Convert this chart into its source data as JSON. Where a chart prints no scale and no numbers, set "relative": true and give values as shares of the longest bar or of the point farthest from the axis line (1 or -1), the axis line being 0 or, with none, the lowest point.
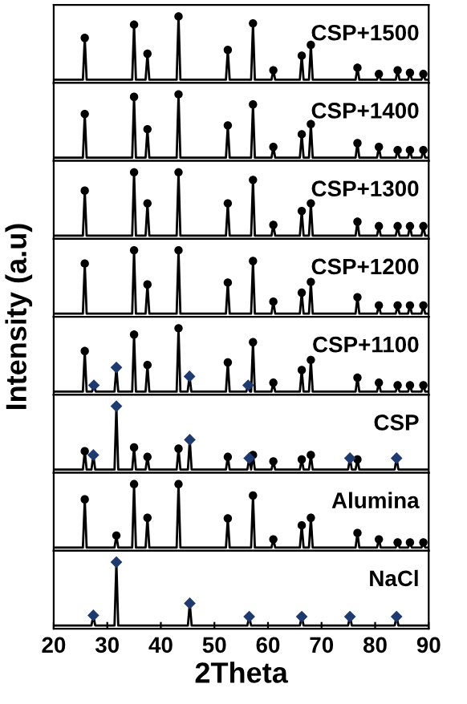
{
  "chart_data": [
    {
      "type": "line",
      "relative": true,
      "xlim": [
        20,
        90
      ],
      "tick_labels": false,
      "grid": false,
      "legend": false,
      "series": [
        {
          "name": "CSP+1500",
          "color": "#000000",
          "x": [
            20,
            25.45,
            25.8,
            26.15,
            34.65,
            35.0,
            35.35,
            37.15,
            37.5,
            37.85,
            42.95,
            43.3,
            43.65,
            52.15,
            52.5,
            52.85,
            56.85,
            57.2,
            57.55,
            60.65,
            61.0,
            61.35,
            65.95,
            66.3,
            66.65,
            67.65,
            68.0,
            68.35,
            76.35,
            76.7,
            77.05,
            80.35,
            80.7,
            81.05,
            83.85,
            84.2,
            84.55,
            86.15,
            86.5,
            86.85,
            88.65,
            89.0,
            89.35,
            89.8
          ],
          "values": [
            0,
            0,
            0.66,
            0,
            0,
            0.87,
            0,
            0,
            0.41,
            0,
            0,
            1,
            0,
            0,
            0.47,
            0,
            0,
            0.89,
            0,
            0,
            0.15,
            0,
            0,
            0.38,
            0,
            0,
            0.55,
            0,
            0,
            0.19,
            0,
            0,
            0.09,
            0,
            0,
            0.15,
            0,
            0,
            0.11,
            0,
            0,
            0.09,
            0,
            0
          ]
        },
        {
          "type": "scatter",
          "marker": "circle",
          "color": "#000000",
          "x": [
            25.8,
            35.0,
            37.5,
            43.3,
            52.5,
            57.2,
            61.0,
            66.3,
            68.0,
            76.7,
            80.7,
            84.2,
            86.5,
            89.0
          ],
          "values": [
            0.66,
            0.87,
            0.41,
            1,
            0.47,
            0.89,
            0.15,
            0.38,
            0.55,
            0.19,
            0.09,
            0.15,
            0.11,
            0.09
          ]
        }
      ]
    },
    {
      "type": "line",
      "relative": true,
      "xlim": [
        20,
        90
      ],
      "tick_labels": false,
      "grid": false,
      "legend": false,
      "series": [
        {
          "name": "CSP+1400",
          "color": "#000000",
          "x": [
            20,
            25.45,
            25.8,
            26.15,
            34.65,
            35.0,
            35.35,
            37.15,
            37.5,
            37.85,
            42.95,
            43.3,
            43.65,
            52.15,
            52.5,
            52.85,
            56.85,
            57.2,
            57.55,
            60.65,
            61.0,
            61.35,
            65.95,
            66.3,
            66.65,
            67.65,
            68.0,
            68.35,
            76.35,
            76.7,
            77.05,
            80.35,
            80.7,
            81.05,
            83.85,
            84.2,
            84.55,
            86.15,
            86.5,
            86.85,
            88.65,
            89.0,
            89.35,
            89.8
          ],
          "values": [
            0,
            0,
            0.69,
            0,
            0,
            0.96,
            0,
            0,
            0.45,
            0,
            0,
            1,
            0,
            0,
            0.51,
            0,
            0,
            0.84,
            0,
            0,
            0.17,
            0,
            0,
            0.37,
            0,
            0,
            0.53,
            0,
            0,
            0.23,
            0,
            0,
            0.17,
            0,
            0,
            0.12,
            0,
            0,
            0.12,
            0,
            0,
            0.12,
            0,
            0
          ]
        },
        {
          "type": "scatter",
          "marker": "circle",
          "color": "#000000",
          "x": [
            25.8,
            35.0,
            37.5,
            43.3,
            52.5,
            57.2,
            61.0,
            66.3,
            68.0,
            76.7,
            80.7,
            84.2,
            86.5,
            89.0
          ],
          "values": [
            0.69,
            0.96,
            0.45,
            1,
            0.51,
            0.84,
            0.17,
            0.37,
            0.53,
            0.23,
            0.17,
            0.12,
            0.12,
            0.12
          ]
        }
      ]
    },
    {
      "type": "line",
      "relative": true,
      "xlim": [
        20,
        90
      ],
      "tick_labels": false,
      "grid": false,
      "legend": false,
      "series": [
        {
          "name": "CSP+1300",
          "color": "#000000",
          "x": [
            20,
            25.45,
            25.8,
            26.15,
            34.65,
            35.0,
            35.35,
            37.15,
            37.5,
            37.85,
            42.95,
            43.3,
            43.65,
            52.15,
            52.5,
            52.85,
            56.85,
            57.2,
            57.55,
            60.65,
            61.0,
            61.35,
            65.95,
            66.3,
            66.65,
            67.65,
            68.0,
            68.35,
            76.35,
            76.7,
            77.05,
            80.35,
            80.7,
            81.05,
            83.85,
            84.2,
            84.55,
            86.15,
            86.5,
            86.85,
            88.65,
            89.0,
            89.35,
            89.8
          ],
          "values": [
            0,
            0,
            0.71,
            0,
            0,
            1,
            0,
            0,
            0.51,
            0,
            0,
            1,
            0,
            0,
            0.51,
            0,
            0,
            0.88,
            0,
            0,
            0.17,
            0,
            0,
            0.39,
            0,
            0,
            0.51,
            0,
            0,
            0.22,
            0,
            0,
            0.15,
            0,
            0,
            0.15,
            0,
            0,
            0.15,
            0,
            0,
            0.15,
            0,
            0
          ]
        },
        {
          "type": "scatter",
          "marker": "circle",
          "color": "#000000",
          "x": [
            25.8,
            35.0,
            37.5,
            43.3,
            52.5,
            57.2,
            61.0,
            66.3,
            68.0,
            76.7,
            80.7,
            84.2,
            86.5,
            89.0
          ],
          "values": [
            0.71,
            1,
            0.51,
            1,
            0.51,
            0.88,
            0.17,
            0.39,
            0.51,
            0.22,
            0.15,
            0.15,
            0.15,
            0.15
          ]
        }
      ]
    },
    {
      "type": "line",
      "relative": true,
      "xlim": [
        20,
        90
      ],
      "tick_labels": false,
      "grid": false,
      "legend": false,
      "series": [
        {
          "name": "CSP+1200",
          "color": "#000000",
          "x": [
            20,
            25.45,
            25.8,
            26.15,
            34.65,
            35.0,
            35.35,
            37.15,
            37.5,
            37.85,
            42.95,
            43.3,
            43.65,
            52.15,
            52.5,
            52.85,
            56.85,
            57.2,
            57.55,
            60.65,
            61.0,
            61.35,
            65.95,
            66.3,
            66.65,
            67.65,
            68.0,
            68.35,
            76.35,
            76.7,
            77.05,
            80.35,
            80.7,
            81.05,
            83.85,
            84.2,
            84.55,
            86.15,
            86.5,
            86.85,
            88.65,
            89.0,
            89.35,
            89.8
          ],
          "values": [
            0,
            0,
            0.79,
            0,
            0,
            1,
            0,
            0,
            0.46,
            0,
            0,
            1,
            0,
            0,
            0.49,
            0,
            0,
            0.83,
            0,
            0,
            0.19,
            0,
            0,
            0.33,
            0,
            0,
            0.5,
            0,
            0,
            0.26,
            0,
            0,
            0.13,
            0,
            0,
            0.13,
            0,
            0,
            0.13,
            0,
            0,
            0.13,
            0,
            0
          ]
        },
        {
          "type": "scatter",
          "marker": "circle",
          "color": "#000000",
          "x": [
            25.8,
            35.0,
            37.5,
            43.3,
            52.5,
            57.2,
            61.0,
            66.3,
            68.0,
            76.7,
            80.7,
            84.2,
            86.5,
            89.0
          ],
          "values": [
            0.79,
            1,
            0.46,
            1,
            0.49,
            0.83,
            0.19,
            0.33,
            0.5,
            0.26,
            0.13,
            0.13,
            0.13,
            0.13
          ]
        }
      ]
    },
    {
      "type": "line",
      "relative": true,
      "xlim": [
        20,
        90
      ],
      "tick_labels": false,
      "grid": false,
      "legend": false,
      "series": [
        {
          "name": "CSP+1100",
          "color": "#000000",
          "x": [
            20,
            25.45,
            25.8,
            26.15,
            27.15,
            27.5,
            27.85,
            31.35,
            31.7,
            32.05,
            34.65,
            35.0,
            35.35,
            37.15,
            37.5,
            37.85,
            42.95,
            43.3,
            43.65,
            45.0,
            45.35,
            45.7,
            52.15,
            52.5,
            52.85,
            55.95,
            56.3,
            56.65,
            56.85,
            57.2,
            57.55,
            60.65,
            61.0,
            61.35,
            65.95,
            66.3,
            66.65,
            67.65,
            68.0,
            68.35,
            76.35,
            76.7,
            77.05,
            80.35,
            80.7,
            81.05,
            83.85,
            84.2,
            84.55,
            86.15,
            86.5,
            86.85,
            88.65,
            89.0,
            89.35,
            89.8
          ],
          "values": [
            0,
            0,
            0.64,
            0,
            0,
            0.1,
            0,
            0,
            0.38,
            0,
            0,
            0.9,
            0,
            0,
            0.42,
            0,
            0,
            1,
            0,
            0,
            0.24,
            0,
            0,
            0.46,
            0,
            0,
            0.1,
            0,
            0,
            0.78,
            0,
            0,
            0.14,
            0,
            0,
            0.34,
            0,
            0,
            0.5,
            0,
            0,
            0.22,
            0,
            0,
            0.14,
            0,
            0,
            0.1,
            0,
            0,
            0.1,
            0,
            0,
            0.1,
            0,
            0
          ]
        },
        {
          "type": "scatter",
          "marker": "circle",
          "color": "#000000",
          "x": [
            25.8,
            35.0,
            37.5,
            43.3,
            52.5,
            57.2,
            61.0,
            66.3,
            68.0,
            76.7,
            80.7,
            84.2,
            86.5,
            89.0
          ],
          "values": [
            0.64,
            0.9,
            0.42,
            1,
            0.46,
            0.78,
            0.14,
            0.34,
            0.5,
            0.22,
            0.14,
            0.1,
            0.1,
            0.1
          ]
        },
        {
          "type": "scatter",
          "marker": "diamond",
          "color": "#1f3a6e",
          "x": [
            27.5,
            31.7,
            45.35,
            56.3
          ],
          "values": [
            0.1,
            0.38,
            0.24,
            0.1
          ]
        }
      ]
    },
    {
      "type": "line",
      "relative": true,
      "xlim": [
        20,
        90
      ],
      "tick_labels": false,
      "grid": false,
      "legend": false,
      "series": [
        {
          "name": "CSP",
          "color": "#000000",
          "x": [
            20,
            25.45,
            25.8,
            26.15,
            27.05,
            27.4,
            27.75,
            31.35,
            31.7,
            32.05,
            34.65,
            35.0,
            35.35,
            37.15,
            37.5,
            37.85,
            42.95,
            43.3,
            43.65,
            45.05,
            45.4,
            45.75,
            52.15,
            52.5,
            52.85,
            56.15,
            56.5,
            56.85,
            56.85,
            57.2,
            57.55,
            60.65,
            61.0,
            61.35,
            65.95,
            66.3,
            66.65,
            67.65,
            68.0,
            68.35,
            74.95,
            75.3,
            75.65,
            76.35,
            76.7,
            77.05,
            83.65,
            84.0,
            84.35,
            89.8
          ],
          "values": [
            0,
            0,
            0.29,
            0,
            0,
            0.23,
            0,
            0,
            1,
            0,
            0,
            0.35,
            0,
            0,
            0.2,
            0,
            0,
            0.33,
            0,
            0,
            0.47,
            0,
            0,
            0.2,
            0,
            0,
            0.18,
            0,
            0,
            0.23,
            0,
            0,
            0.13,
            0,
            0,
            0.16,
            0,
            0,
            0.23,
            0,
            0,
            0.18,
            0,
            0,
            0.16,
            0,
            0,
            0.18,
            0,
            0
          ]
        },
        {
          "type": "scatter",
          "marker": "circle",
          "color": "#000000",
          "x": [
            25.8,
            35.0,
            37.5,
            43.3,
            52.5,
            57.2,
            61.0,
            66.3,
            68.0,
            76.7
          ],
          "values": [
            0.29,
            0.35,
            0.2,
            0.33,
            0.2,
            0.23,
            0.13,
            0.16,
            0.23,
            0.16
          ]
        },
        {
          "type": "scatter",
          "marker": "diamond",
          "color": "#1f3a6e",
          "x": [
            27.4,
            31.7,
            45.4,
            56.5,
            75.3,
            84.0
          ],
          "values": [
            0.23,
            1,
            0.47,
            0.18,
            0.18,
            0.18
          ]
        }
      ]
    },
    {
      "type": "line",
      "relative": true,
      "xlim": [
        20,
        90
      ],
      "tick_labels": false,
      "grid": false,
      "legend": false,
      "series": [
        {
          "name": "Alumina",
          "color": "#000000",
          "x": [
            20,
            25.45,
            25.8,
            26.15,
            31.35,
            31.7,
            32.05,
            34.65,
            35.0,
            35.35,
            37.15,
            37.5,
            37.85,
            42.95,
            43.3,
            43.65,
            52.15,
            52.5,
            52.85,
            56.85,
            57.2,
            57.55,
            60.65,
            61.0,
            61.35,
            65.95,
            66.3,
            66.65,
            67.65,
            68.0,
            68.35,
            76.35,
            76.7,
            77.05,
            80.35,
            80.7,
            81.05,
            83.85,
            84.2,
            84.55,
            86.15,
            86.5,
            86.85,
            88.65,
            89.0,
            89.35,
            89.8
          ],
          "values": [
            0,
            0,
            0.76,
            0,
            0,
            0.19,
            0,
            0,
            1,
            0,
            0,
            0.47,
            0,
            0,
            1,
            0,
            0,
            0.46,
            0,
            0,
            0.82,
            0,
            0,
            0.13,
            0,
            0,
            0.35,
            0,
            0,
            0.47,
            0,
            0,
            0.23,
            0,
            0,
            0.13,
            0,
            0,
            0.08,
            0,
            0,
            0.08,
            0,
            0,
            0.08,
            0,
            0
          ]
        },
        {
          "type": "scatter",
          "marker": "circle",
          "color": "#000000",
          "x": [
            25.8,
            31.7,
            35.0,
            37.5,
            43.3,
            52.5,
            57.2,
            61.0,
            66.3,
            68.0,
            76.7,
            80.7,
            84.2,
            86.5,
            89.0
          ],
          "values": [
            0.76,
            0.19,
            1,
            0.47,
            1,
            0.46,
            0.82,
            0.13,
            0.35,
            0.47,
            0.23,
            0.13,
            0.08,
            0.08,
            0.08
          ]
        }
      ]
    },
    {
      "type": "line",
      "relative": true,
      "xlim": [
        20,
        90
      ],
      "xticks": [
        20,
        30,
        40,
        50,
        60,
        70,
        80,
        90
      ],
      "tick_labels": "x",
      "xlabel": "2Theta",
      "ylabel": "Intensity (a.u)",
      "grid": false,
      "legend": false,
      "series": [
        {
          "name": "NaCl",
          "color": "#000000",
          "x": [
            20,
            27.05,
            27.4,
            27.75,
            31.35,
            31.7,
            32.05,
            45.05,
            45.4,
            45.75,
            56.15,
            56.5,
            56.85,
            65.95,
            66.3,
            66.65,
            74.95,
            75.3,
            75.65,
            83.65,
            84.0,
            84.35,
            89.8
          ],
          "values": [
            0,
            0,
            0.16,
            0,
            0,
            1,
            0,
            0,
            0.35,
            0,
            0,
            0.14,
            0,
            0,
            0.14,
            0,
            0,
            0.14,
            0,
            0,
            0.14,
            0,
            0
          ]
        },
        {
          "type": "scatter",
          "marker": "diamond",
          "color": "#1f3a6e",
          "x": [
            27.4,
            31.7,
            45.4,
            56.5,
            66.3,
            75.3,
            84.0
          ],
          "values": [
            0.16,
            1,
            0.35,
            0.14,
            0.14,
            0.14,
            0.14
          ]
        }
      ]
    }
  ]
}
